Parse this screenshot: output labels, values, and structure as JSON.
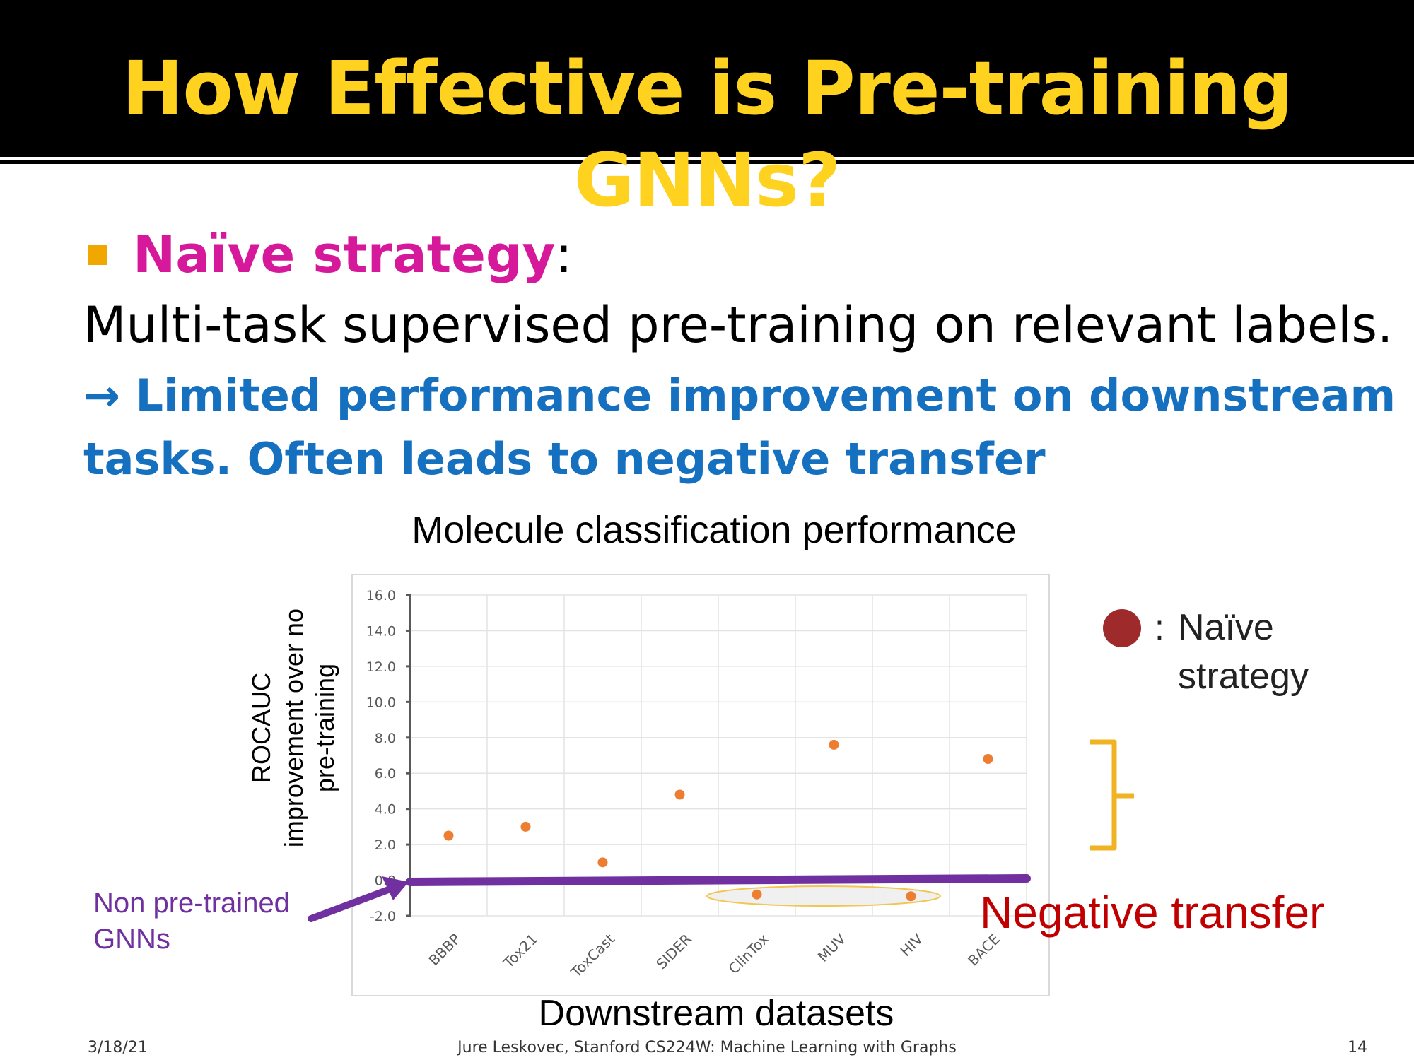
{
  "slide": {
    "title": "How Effective is Pre-training GNNs?",
    "bullet_heading": "Naïve strategy",
    "bullet_colon": ":",
    "line2": "Multi-task supervised pre-training on relevant labels.",
    "line3_arrow": "→",
    "line3": "Limited performance improvement on downstream",
    "line4": "tasks. Often leads to negative transfer"
  },
  "footer": {
    "date": "3/18/21",
    "credit": "Jure Leskovec, Stanford CS224W: Machine Learning with Graphs",
    "page": "14"
  },
  "annotations": {
    "legend_colon": ":",
    "legend_line1": "Naïve",
    "legend_line2": "strategy",
    "non_pretrained_line1": "Non pre-trained",
    "non_pretrained_line2": "GNNs",
    "negative_transfer": "Negative transfer"
  },
  "colors": {
    "title": "#FFD21F",
    "heading": "#D6189A",
    "blue_text": "#1670C0",
    "point": "#ED7D31",
    "baseline": "#7030A0",
    "legend_dot": "#9E2A2B",
    "negative": "#C00000",
    "bracket": "#F0B323"
  },
  "chart_data": {
    "type": "scatter",
    "title": "Molecule classification performance",
    "xlabel": "Downstream datasets",
    "ylabel": "ROCAUC improvement over no pre-training",
    "ylabel_lines": [
      "ROCAUC",
      "improvement over no",
      "pre-training"
    ],
    "categories": [
      "BBBP",
      "Tox21",
      "ToxCast",
      "SIDER",
      "ClinTox",
      "MUV",
      "HIV",
      "BACE"
    ],
    "values": [
      2.5,
      3.0,
      1.0,
      4.8,
      -0.8,
      7.6,
      -0.9,
      6.8
    ],
    "yticks": [
      "16.0",
      "14.0",
      "12.0",
      "10.0",
      "8.0",
      "6.0",
      "4.0",
      "2.0",
      "0.0",
      "-2.0"
    ],
    "ylim": [
      -2,
      16
    ],
    "grid": true,
    "legend": "right"
  }
}
